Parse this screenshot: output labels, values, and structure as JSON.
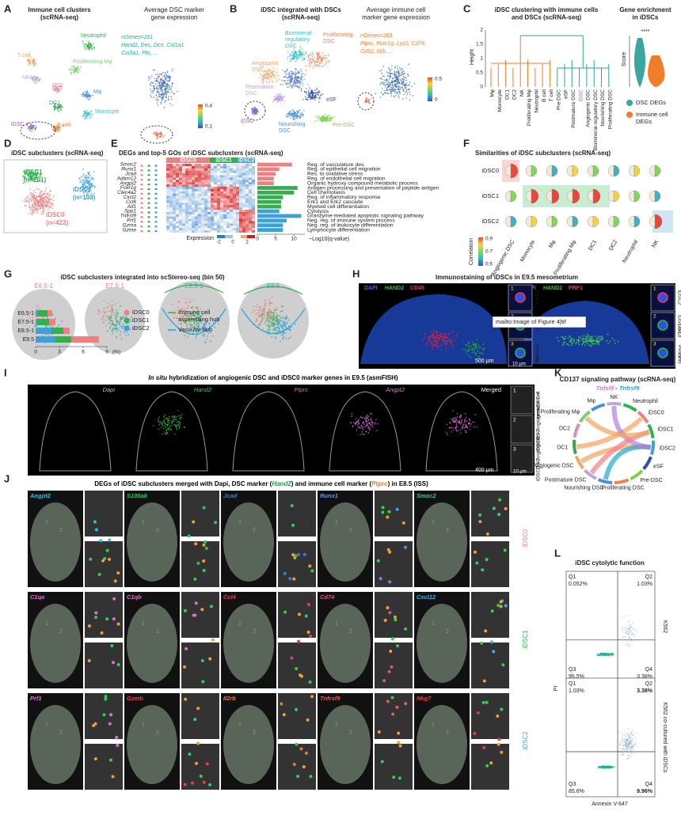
{
  "chart_data": [
    {
      "type": "hbar",
      "categories": [
        "Reg. of vasculature dev.",
        "Reg. of epithelial cell migration",
        "Res. to oxidative stress",
        "Reg. of endothelial cell migration",
        "Organic hydroxy compound metabolic process",
        "Antigen processing and presentation of peptide antigen",
        "Cell chemotaxis",
        "Reg. of inflammatory response",
        "Erk1 and Erk2 cascade",
        "Myeloid cell differentiation",
        "Cytolysis",
        "Granzyme-mediated apoptotic signaling pathway",
        "Neg. reg. of immune system process",
        "Neg. reg. of leukocyte differentiation",
        "Lymphocyte differentiation"
      ],
      "values": [
        9.5,
        6,
        5,
        4.5,
        4.5,
        11,
        10,
        7,
        6.5,
        6.5,
        6,
        12,
        8,
        7,
        7
      ],
      "colors": [
        "#f08080",
        "#f08080",
        "#f08080",
        "#f08080",
        "#f08080",
        "#2db34a",
        "#2db34a",
        "#2db34a",
        "#2db34a",
        "#2db34a",
        "#3f9fd8",
        "#3f9fd8",
        "#3f9fd8",
        "#3f9fd8",
        "#3f9fd8"
      ],
      "xlabel": "−Log10(q-value)",
      "xlim": [
        0,
        13
      ],
      "xticks": [
        0,
        5,
        10
      ]
    },
    {
      "type": "stacked_hbar",
      "categories": [
        "E6.5-1",
        "E7.5-1",
        "E8.5-1",
        "E9.5"
      ],
      "series": [
        {
          "name": "iDSC0",
          "color": "#f08080",
          "values": [
            0.6,
            0.8,
            0.8,
            3.5
          ]
        },
        {
          "name": "iDSC1",
          "color": "#2db34a",
          "values": [
            1.2,
            1.4,
            1.5,
            2.0
          ]
        },
        {
          "name": "iDSC2",
          "color": "#3f9fd8",
          "values": [
            0.3,
            0.3,
            2.0,
            2.5
          ]
        }
      ],
      "xlabel": "(%)",
      "xlim": [
        0,
        9
      ],
      "xticks": [
        0,
        3,
        6,
        9
      ]
    }
  ],
  "panels": {
    "A": {
      "letter": "A",
      "title": [
        "Immune cell clusters",
        "(scRNA-seq)"
      ],
      "title2": [
        "Average DSC marker",
        "gene expression"
      ],
      "clusters": [
        "Neutrophil",
        "T cell",
        "NK",
        "Proliferating Mφ",
        "DC2",
        "Mφ",
        "DC1",
        "Monocyte",
        "iDSC",
        "B cell"
      ],
      "note": [
        "nGenes=261",
        "Hand2, Des, Dcn, Col1a1",
        "Col3a1, Ptn, ..."
      ],
      "scale": [
        "0.4",
        "0.1"
      ]
    },
    "B": {
      "letter": "B",
      "title": [
        "iDSC integrated with DSCs",
        "(scRNA-seq)"
      ],
      "title2": [
        "Average immune cell",
        "marker gene expression"
      ],
      "clusters": [
        [
          "Biomineral-",
          "regulatory",
          "DSC"
        ],
        [
          "Proliferating",
          "DSC"
        ],
        [
          "Angiogenic",
          "DSC"
        ],
        [
          "Postmature",
          "DSC"
        ],
        [
          "iDSC"
        ],
        [
          "eSF"
        ],
        [
          "Nourishing",
          "DSC"
        ],
        [
          "Pre-DSC"
        ]
      ],
      "note": [
        "nGenes=263",
        "Ptprc, Fcer1g, Lyz2, Cd74,",
        "Cd52, Il1b, ..."
      ],
      "scale": [
        "0.5",
        "0"
      ]
    },
    "C": {
      "letter": "C",
      "title": [
        "iDSC clustering with immune cells",
        "and DSCs (scRNA-seq)"
      ],
      "ylabel": "Height",
      "yticks": [
        "0",
        "0.5",
        "1",
        "1.5",
        "2"
      ],
      "leaves": [
        "Mφ",
        "Monocyte",
        "DC1",
        "DC2",
        "NK",
        "Proliferating Mφ",
        "Neutrophil",
        "B cell",
        "T cell",
        "Pre-DSC",
        "eSF",
        "Postmature DSC",
        "iDSC",
        "Angiogenic DSC",
        "Biomineral-regulatory DSC",
        "Nourishing DSC",
        "Proliferating DSC"
      ],
      "title2": [
        "Gene enrichment",
        "in iDSCs"
      ],
      "score": "Score",
      "stars": "****",
      "legend": [
        "DSC DEGs",
        [
          "Immune cell",
          "DEGs"
        ]
      ]
    },
    "D": {
      "letter": "D",
      "title": "iDSC subclusters (scRNA-seq)",
      "groups": [
        [
          "iDSC1",
          "(n=201)"
        ],
        [
          "iDSC2",
          "(n=193)"
        ],
        [
          "iDSC0",
          "(n=422)"
        ]
      ]
    },
    "E": {
      "letter": "E",
      "title": "DEGs and top-5 GOs of iDSC subclusters (scRNA-seq)",
      "genes": [
        "Smoc2",
        "Runx1",
        "Jcad",
        "Adam12",
        "Angpt2",
        "Fcer1g",
        "Clec4a2",
        "Cxcl2",
        "Ccl6",
        "Aif1",
        "Spp1",
        "Tnfrsf9",
        "Prf1",
        "Gzma",
        "Gzme"
      ],
      "groups": [
        "iDSC0",
        "iDSC1",
        "iDSC2"
      ],
      "expression": "Expression",
      "expression_ticks": [
        "-2",
        "0",
        "2"
      ]
    },
    "F": {
      "letter": "F",
      "title": "Similarities of iDSC subclusters (scRNA-seq)",
      "rows": [
        "iDSC0",
        "iDSC1",
        "iDSC2"
      ],
      "columns": [
        "Angiogenic DSC",
        "Monocyte",
        "Mφ",
        "Proliferating Mφ",
        "DC1",
        "DC2",
        "Neutrophil",
        "NK"
      ],
      "scale_label": "Correlation",
      "scale": [
        "0.9",
        "0.7",
        "0.5"
      ]
    },
    "G": {
      "letter": "G",
      "title": "iDSC subclusters integrated into scStereo-seq (bin 50)",
      "hubs": [
        [
          "Immune cell",
          "assembling hub"
        ],
        "Vascular hub"
      ]
    },
    "H": {
      "letter": "H",
      "title": "Immunostaining of iDSCs in E9.5 mesometrium",
      "stain1": [
        "DAPI",
        "HAND2",
        "CD45"
      ],
      "stain2": [
        "DAPI",
        "HAND2",
        "PRF1"
      ],
      "insets": [
        "1",
        "2",
        "3"
      ],
      "side1": [
        "iDSCs",
        "DSCs",
        [
          "Immune",
          "cells"
        ]
      ],
      "side2": [
        "iDSC2",
        [
          "iDSC0/1,",
          "DSCs"
        ],
        [
          "PRF1⁺",
          "cells"
        ]
      ],
      "scale": [
        "500 µm",
        "10 µm"
      ],
      "tooltip": "mailto:Image of Figure 4|tif"
    },
    "I": {
      "letter": "I",
      "title": [
        "In situ",
        " hybridization of angiogenic DSC and iDSC0 marker genes in E9.5 (asmFISH)"
      ],
      "channels": [
        "Dapi",
        "Hand2",
        "Ptprc",
        "Angpt2",
        "Merged"
      ],
      "insets": [
        "1",
        "2",
        "3"
      ],
      "side": [
        [
          "DSC +",
          "immune cell"
        ],
        [
          "iDSC0 + Angiogenic",
          "DSC"
        ],
        [
          "iDSC0 + Angiogenic",
          "DSC"
        ]
      ],
      "scale": [
        "400 µm",
        "10 µm"
      ]
    },
    "J": {
      "letter": "J",
      "title": [
        "DEGs of iDSC subclusters merged with ",
        "Dapi",
        ", DSC marker (",
        "Hand2",
        ") and immune cell marker (",
        "Ptprc",
        ") in E8.5 (ISS)"
      ],
      "genes": [
        [
          "Angpt2",
          "S100a8",
          "Jcad",
          "Runx1",
          "Smoc2"
        ],
        [
          "C1qa",
          "C1qb",
          "Ccl4",
          "Cd74",
          "Cxcl12"
        ],
        [
          "Prf1",
          "Gzmb",
          "Il2rb",
          "Tnfrsf9",
          "Nkg7"
        ]
      ],
      "side": [
        "iDSC0",
        "iDSC1",
        "iDSC2"
      ],
      "spots": [
        "1",
        "2"
      ],
      "scale": [
        "500 µm",
        "10 µm"
      ]
    },
    "K": {
      "letter": "K",
      "title": "CD137 signaling pathway (scRNA-seq)",
      "pair": [
        "Tnfsf9",
        " - ",
        "Tnfrsf9"
      ],
      "nodes": [
        "NK",
        "Neutrophil",
        "iDSC0",
        "iDSC1",
        "iDSC2",
        "eSF",
        "Pre-DSC",
        "Proliferating DSC",
        "Nourishing DSC",
        "Postmature DSC",
        "Angiogenic DSC",
        "DC1",
        "DC2",
        "Proliferating Mφ",
        "Mφ"
      ]
    },
    "L": {
      "letter": "L",
      "title": "iDSC cytolytic function",
      "ylabel": "PI",
      "xlabel": "Annexin V-647",
      "plots": [
        {
          "side": "K562",
          "q": [
            "Q1",
            "Q2",
            "Q3",
            "Q4"
          ],
          "pct": [
            "0.052%",
            "1.03%",
            "95.5%",
            "3.38%"
          ]
        },
        {
          "side": "K562 co-cultured with iDSCs",
          "q": [
            "Q1",
            "Q2",
            "Q3",
            "Q4"
          ],
          "pct": [
            "1.03%",
            "3.38%",
            "85.6%",
            "9.96%"
          ]
        }
      ]
    }
  }
}
